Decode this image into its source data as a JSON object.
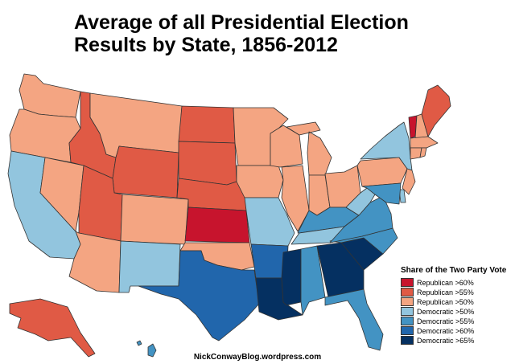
{
  "title": {
    "line1": "Average of all Presidential Election",
    "line2": "Results by State, 1856-2012"
  },
  "legend": {
    "title": "Share of the Two Party Vote",
    "items": [
      {
        "label": "Republican >60%",
        "color": "#c7142d"
      },
      {
        "label": "Republican >55%",
        "color": "#e05a45"
      },
      {
        "label": "Republican >50%",
        "color": "#f4a582"
      },
      {
        "label": "Democratic >50%",
        "color": "#92c5de"
      },
      {
        "label": "Democratic >55%",
        "color": "#4393c3"
      },
      {
        "label": "Democratic >60%",
        "color": "#2166ac"
      },
      {
        "label": "Democratic >65%",
        "color": "#053061"
      }
    ]
  },
  "credit": "NickConwayBlog.wordpress.com",
  "states": [
    {
      "code": "WA",
      "category": 2
    },
    {
      "code": "OR",
      "category": 2
    },
    {
      "code": "CA",
      "category": 3
    },
    {
      "code": "NV",
      "category": 2
    },
    {
      "code": "ID",
      "category": 1
    },
    {
      "code": "MT",
      "category": 2
    },
    {
      "code": "WY",
      "category": 1
    },
    {
      "code": "UT",
      "category": 1
    },
    {
      "code": "AZ",
      "category": 2
    },
    {
      "code": "CO",
      "category": 2
    },
    {
      "code": "NM",
      "category": 3
    },
    {
      "code": "ND",
      "category": 1
    },
    {
      "code": "SD",
      "category": 1
    },
    {
      "code": "NE",
      "category": 1
    },
    {
      "code": "KS",
      "category": 0
    },
    {
      "code": "OK",
      "category": 2
    },
    {
      "code": "TX",
      "category": 5
    },
    {
      "code": "MN",
      "category": 2
    },
    {
      "code": "IA",
      "category": 2
    },
    {
      "code": "MO",
      "category": 3
    },
    {
      "code": "AR",
      "category": 5
    },
    {
      "code": "LA",
      "category": 6
    },
    {
      "code": "WI",
      "category": 2
    },
    {
      "code": "IL",
      "category": 2
    },
    {
      "code": "MI",
      "category": 2
    },
    {
      "code": "IN",
      "category": 2
    },
    {
      "code": "OH",
      "category": 2
    },
    {
      "code": "KY",
      "category": 4
    },
    {
      "code": "TN",
      "category": 3
    },
    {
      "code": "MS",
      "category": 6
    },
    {
      "code": "AL",
      "category": 4
    },
    {
      "code": "GA",
      "category": 6
    },
    {
      "code": "FL",
      "category": 4
    },
    {
      "code": "SC",
      "category": 6
    },
    {
      "code": "NC",
      "category": 4
    },
    {
      "code": "VA",
      "category": 4
    },
    {
      "code": "WV",
      "category": 3
    },
    {
      "code": "PA",
      "category": 2
    },
    {
      "code": "NY",
      "category": 3
    },
    {
      "code": "VT",
      "category": 0
    },
    {
      "code": "NH",
      "category": 2
    },
    {
      "code": "ME",
      "category": 1
    },
    {
      "code": "MA",
      "category": 2
    },
    {
      "code": "CT",
      "category": 2
    },
    {
      "code": "RI",
      "category": 2
    },
    {
      "code": "NJ",
      "category": 2
    },
    {
      "code": "DE",
      "category": 3
    },
    {
      "code": "MD",
      "category": 4
    },
    {
      "code": "AK",
      "category": 1
    },
    {
      "code": "HI",
      "category": 4
    }
  ]
}
